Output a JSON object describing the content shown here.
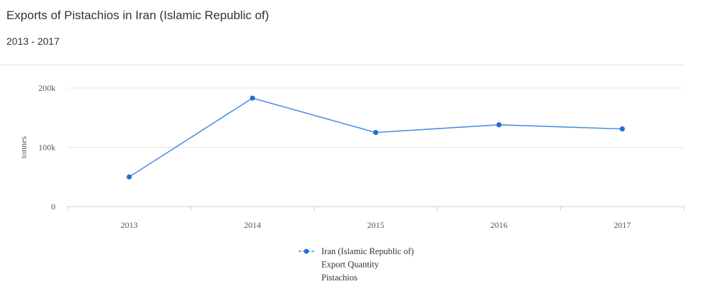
{
  "header": {
    "title": "Exports of Pistachios in Iran (Islamic Republic of)",
    "subtitle": "2013 - 2017"
  },
  "colors": {
    "series": "#4a90e2",
    "marker": "#1f6fd6",
    "grid": "#e6e6e6",
    "axis": "#cccccc",
    "text": "#555555"
  },
  "chart_data": {
    "type": "line",
    "title": "Exports of Pistachios in Iran (Islamic Republic of)",
    "subtitle": "2013 - 2017",
    "xlabel": "",
    "ylabel": "tonnes",
    "categories": [
      "2013",
      "2014",
      "2015",
      "2016",
      "2017"
    ],
    "yticks": [
      {
        "value": 0,
        "label": "0"
      },
      {
        "value": 100000,
        "label": "100k"
      },
      {
        "value": 200000,
        "label": "200k"
      }
    ],
    "ylim": [
      0,
      200000
    ],
    "grid": true,
    "legend_position": "bottom",
    "series": [
      {
        "name": "Iran (Islamic Republic of)",
        "legend_lines": [
          "Iran (Islamic Republic of)",
          "Export Quantity",
          "Pistachios"
        ],
        "values": [
          50000,
          183000,
          125000,
          138000,
          131000
        ]
      }
    ]
  }
}
